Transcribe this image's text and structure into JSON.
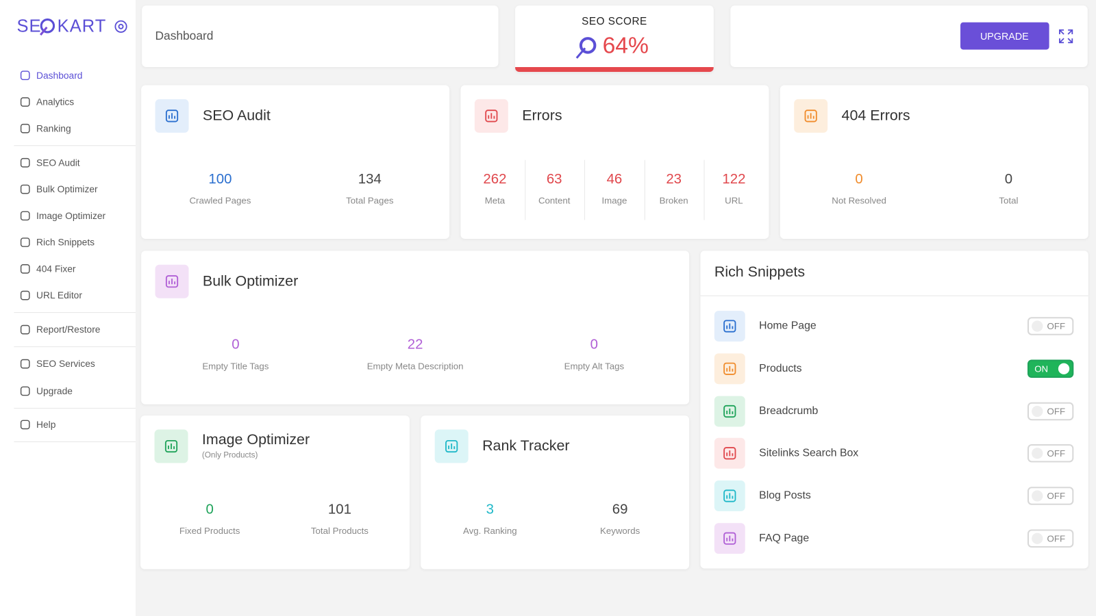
{
  "sidebar": {
    "logo": {
      "left": "SE",
      "right": "KART"
    },
    "nav": [
      "Dashboard",
      "Analytics",
      "Ranking",
      "SEO Audit",
      "Bulk Optimizer",
      "Image Optimizer",
      "Rich Snippets",
      "404 Fixer",
      "URL Editor",
      "Report/Restore",
      "SEO Services",
      "Upgrade",
      "Help"
    ]
  },
  "header": {
    "title": "Dashboard",
    "seo_score": {
      "label": "SEO SCORE",
      "value": "64%"
    },
    "button": "UPGRADE"
  },
  "seo_audit": {
    "title": "SEO Audit",
    "stats": [
      {
        "value": 100,
        "label": "Crawled Pages"
      },
      {
        "value": 134,
        "label": "Total Pages"
      }
    ]
  },
  "errors": {
    "title": "Errors",
    "stats": [
      {
        "value": 262,
        "label": "Meta"
      },
      {
        "value": 63,
        "label": "Content"
      },
      {
        "value": 46,
        "label": "Image"
      },
      {
        "value": 23,
        "label": "Broken"
      },
      {
        "value": 122,
        "label": "URL"
      }
    ]
  },
  "errors_404": {
    "title": "404 Errors",
    "stats": [
      {
        "value": 0,
        "label": "Not Resolved"
      },
      {
        "value": 0,
        "label": "Total"
      }
    ]
  },
  "bulk_optimizer": {
    "title": "Bulk Optimizer",
    "stats": [
      {
        "value": 0,
        "label": "Empty Title Tags"
      },
      {
        "value": 22,
        "label": "Empty Meta Description"
      },
      {
        "value": 0,
        "label": "Empty Alt Tags"
      }
    ]
  },
  "image_optimizer": {
    "title": "Image Optimizer",
    "subtitle": "(Only Products)",
    "stats": [
      {
        "value": 0,
        "label": "Fixed Products"
      },
      {
        "value": 101,
        "label": "Total Products"
      }
    ]
  },
  "rank_tracker": {
    "title": "Rank Tracker",
    "stats": [
      {
        "value": 3,
        "label": "Avg. Ranking"
      },
      {
        "value": 69,
        "label": "Keywords"
      }
    ]
  },
  "rich_snippets": {
    "title": "Rich Snippets",
    "items": [
      {
        "label": "Home Page",
        "state": "OFF",
        "on": false
      },
      {
        "label": "Products",
        "state": "ON",
        "on": true
      },
      {
        "label": "Breadcrumb",
        "state": "OFF",
        "on": false
      },
      {
        "label": "Sitelinks Search Box",
        "state": "OFF",
        "on": false
      },
      {
        "label": "Blog Posts",
        "state": "OFF",
        "on": false
      },
      {
        "label": "FAQ Page",
        "state": "OFF",
        "on": false
      }
    ]
  }
}
